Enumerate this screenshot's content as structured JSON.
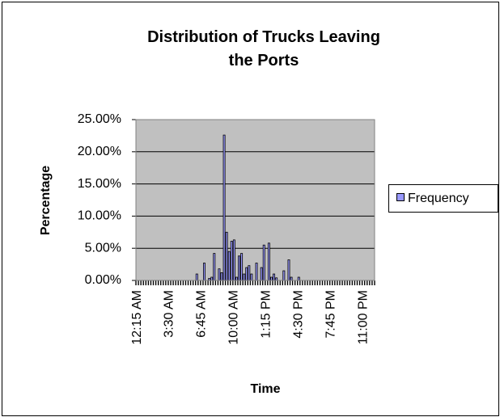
{
  "chart_data": {
    "type": "bar",
    "title": "Distribution of Trucks Leaving the Ports",
    "x_label": "Time",
    "y_label": "Percentage",
    "categories": [
      "12:15 AM",
      null,
      null,
      null,
      null,
      null,
      null,
      null,
      null,
      null,
      null,
      null,
      null,
      "3:30 AM",
      null,
      null,
      null,
      null,
      null,
      null,
      null,
      null,
      null,
      null,
      null,
      null,
      "6:45 AM",
      null,
      null,
      null,
      null,
      null,
      null,
      null,
      null,
      null,
      null,
      null,
      null,
      "10:00 AM",
      null,
      null,
      null,
      null,
      null,
      null,
      null,
      null,
      null,
      null,
      null,
      null,
      "1:15 PM",
      null,
      null,
      null,
      null,
      null,
      null,
      null,
      null,
      null,
      null,
      null,
      null,
      "4:30 PM",
      null,
      null,
      null,
      null,
      null,
      null,
      null,
      null,
      null,
      null,
      null,
      null,
      "7:45 PM",
      null,
      null,
      null,
      null,
      null,
      null,
      null,
      null,
      null,
      null,
      null,
      null,
      "11:00 PM",
      null,
      null,
      null,
      null
    ],
    "series": [
      {
        "name": "Frequency",
        "color": "#9999ff",
        "values": [
          0,
          0,
          0,
          0,
          0,
          0,
          0,
          0,
          0,
          0,
          0,
          0,
          0,
          0,
          0,
          0,
          0,
          0,
          0,
          0,
          0,
          0,
          0,
          0,
          1.0,
          0,
          0,
          2.7,
          0,
          0.3,
          0.5,
          4.2,
          0,
          1.8,
          1.2,
          22.6,
          7.5,
          4.5,
          6.1,
          6.3,
          0.5,
          3.8,
          4.2,
          1.0,
          2.0,
          2.3,
          1.0,
          0,
          2.7,
          0,
          2.0,
          5.5,
          0,
          5.8,
          0.5,
          1.0,
          0.4,
          0,
          0,
          1.5,
          0,
          3.2,
          0.5,
          0,
          0,
          0.5,
          0,
          0,
          0,
          0,
          0,
          0,
          0,
          0,
          0,
          0,
          0,
          0,
          0,
          0,
          0,
          0,
          0,
          0,
          0,
          0,
          0,
          0,
          0,
          0,
          0,
          0,
          0,
          0,
          0,
          0
        ]
      }
    ],
    "ylim": [
      0,
      25
    ],
    "yticks": [
      {
        "value": 0,
        "label": "0.00%"
      },
      {
        "value": 5,
        "label": "5.00%"
      },
      {
        "value": 10,
        "label": "10.00%"
      },
      {
        "value": 15,
        "label": "15.00%"
      },
      {
        "value": 20,
        "label": "20.00%"
      },
      {
        "value": 25,
        "label": "25.00%"
      }
    ],
    "grid": true,
    "legend": "right"
  }
}
